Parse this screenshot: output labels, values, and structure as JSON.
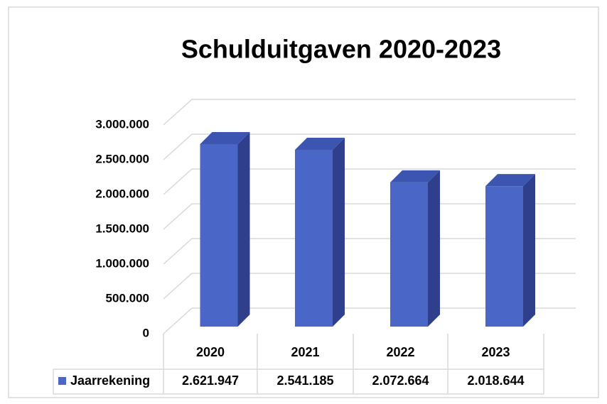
{
  "chart_data": {
    "type": "bar3d",
    "title": "Schulduitgaven 2020-2023",
    "categories": [
      "2020",
      "2021",
      "2022",
      "2023"
    ],
    "series": [
      {
        "name": "Jaarrekening",
        "color": "#4a67c8",
        "values": [
          2621947,
          2541185,
          2072664,
          2018644
        ],
        "value_labels": [
          "2.621.947",
          "2.541.185",
          "2.072.664",
          "2.018.644"
        ]
      }
    ],
    "ylim": [
      0,
      3000000
    ],
    "yticks": [
      {
        "value": 0,
        "label": "0"
      },
      {
        "value": 500000,
        "label": "500.000"
      },
      {
        "value": 1000000,
        "label": "1.000.000"
      },
      {
        "value": 1500000,
        "label": "1.500.000"
      },
      {
        "value": 2000000,
        "label": "2.000.000"
      },
      {
        "value": 2500000,
        "label": "2.500.000"
      },
      {
        "value": 3000000,
        "label": "3.000.000"
      }
    ],
    "grid": true,
    "data_table": true
  }
}
